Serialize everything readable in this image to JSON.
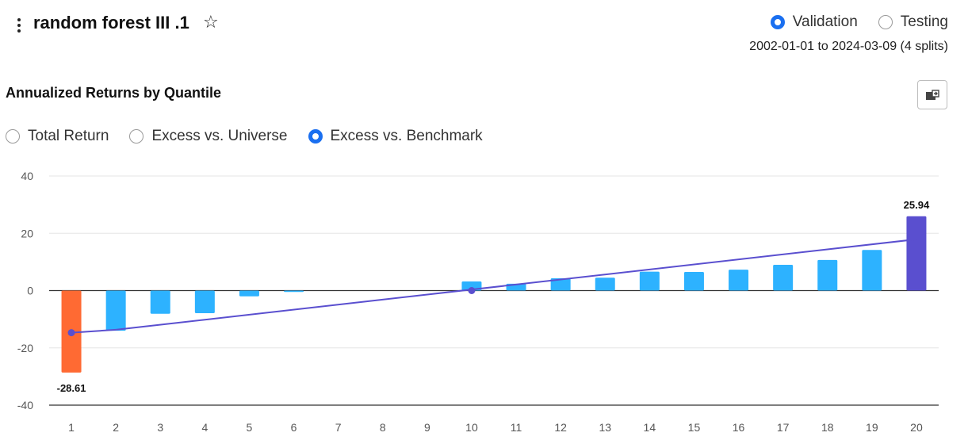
{
  "header": {
    "menu_icon": "kebab-menu-icon",
    "title": "random forest III .1",
    "star_icon": "star-outline-icon",
    "star_glyph": "☆",
    "env_options": [
      {
        "label": "Validation",
        "selected": true
      },
      {
        "label": "Testing",
        "selected": false
      }
    ],
    "date_range": "2002-01-01 to 2024-03-09 (4 splits)"
  },
  "section": {
    "title": "Annualized Returns by Quantile",
    "export_icon": "export-image-icon",
    "mode_options": [
      {
        "label": "Total Return",
        "selected": false
      },
      {
        "label": "Excess vs. Universe",
        "selected": false
      },
      {
        "label": "Excess vs. Benchmark",
        "selected": true
      }
    ]
  },
  "chart_data": {
    "type": "bar",
    "categories": [
      "1",
      "2",
      "3",
      "4",
      "5",
      "6",
      "7",
      "8",
      "9",
      "10",
      "11",
      "12",
      "13",
      "14",
      "15",
      "16",
      "17",
      "18",
      "19",
      "20"
    ],
    "values": [
      -28.61,
      -14.0,
      -8.1,
      -7.9,
      -2.0,
      -0.5,
      0,
      0,
      0,
      3.2,
      2.4,
      4.3,
      4.5,
      6.6,
      6.5,
      7.3,
      9.0,
      10.7,
      14.2,
      25.94
    ],
    "trendline": {
      "start": -14.7,
      "end": 17.9,
      "midpoint_x": 9.5
    },
    "data_labels": [
      {
        "index": 0,
        "text": "-28.61"
      },
      {
        "index": 19,
        "text": "25.94"
      }
    ],
    "yticks": [
      40,
      20,
      0,
      -20,
      -40
    ],
    "ylim": [
      -40,
      40
    ],
    "grid": true,
    "colors": {
      "negative_extreme": "#ff6a33",
      "positive_extreme": "#5a4fcf",
      "default": "#2db2ff",
      "trendline": "#5a4fcf",
      "axis": "#333333",
      "grid": "#e6e6e6"
    }
  }
}
